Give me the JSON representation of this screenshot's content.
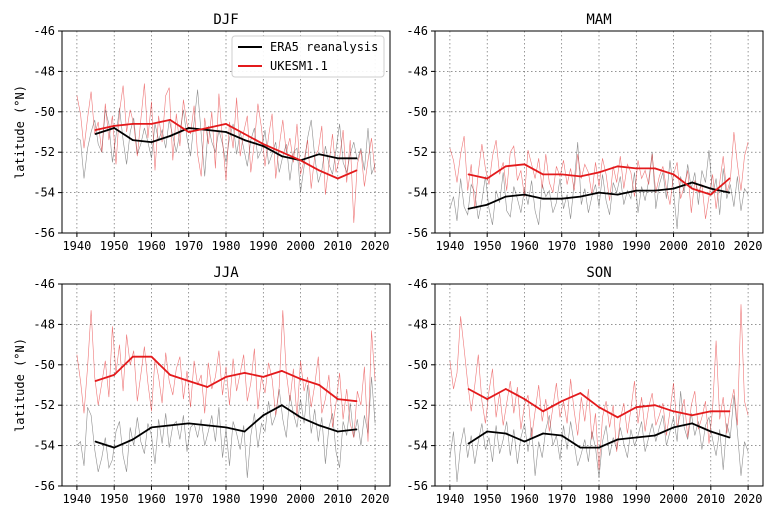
{
  "chart_data": [
    {
      "type": "line",
      "title": "DJF",
      "ylabel": "latitude (°N)",
      "xlim": [
        1936,
        2024
      ],
      "ylim": [
        -56,
        -46
      ],
      "xticks": [
        1940,
        1950,
        1960,
        1970,
        1980,
        1990,
        2000,
        2010,
        2020
      ],
      "yticks": [
        -56,
        -54,
        -52,
        -50,
        -48,
        -46
      ],
      "grid": true,
      "legend": "top-right",
      "series": [
        {
          "name": "ERA5 reanalysis",
          "color": "#000000",
          "x": [
            1945,
            1950,
            1955,
            1960,
            1965,
            1970,
            1975,
            1980,
            1985,
            1990,
            1995,
            2000,
            2005,
            2010,
            2015
          ],
          "values": [
            -51.1,
            -50.8,
            -51.4,
            -51.5,
            -51.2,
            -50.8,
            -50.9,
            -51.0,
            -51.4,
            -51.7,
            -52.2,
            -52.4,
            -52.1,
            -52.3,
            -52.3
          ]
        },
        {
          "name": "UKESM1.1",
          "color": "#e31a1c",
          "x": [
            1945,
            1950,
            1955,
            1960,
            1965,
            1970,
            1975,
            1980,
            1985,
            1990,
            1995,
            2000,
            2005,
            2010,
            2015
          ],
          "values": [
            -50.9,
            -50.7,
            -50.6,
            -50.6,
            -50.4,
            -51.0,
            -50.8,
            -50.6,
            -51.1,
            -51.6,
            -52.0,
            -52.4,
            -52.9,
            -53.3,
            -52.9
          ]
        }
      ]
    },
    {
      "type": "line",
      "title": "MAM",
      "xlim": [
        1936,
        2024
      ],
      "ylim": [
        -56,
        -46
      ],
      "xticks": [
        1940,
        1950,
        1960,
        1970,
        1980,
        1990,
        2000,
        2010,
        2020
      ],
      "yticks": [
        -56,
        -54,
        -52,
        -50,
        -48,
        -46
      ],
      "grid": true,
      "series": [
        {
          "name": "ERA5 reanalysis",
          "color": "#000000",
          "x": [
            1945,
            1950,
            1955,
            1960,
            1965,
            1970,
            1975,
            1980,
            1985,
            1990,
            1995,
            2000,
            2005,
            2010,
            2015
          ],
          "values": [
            -54.8,
            -54.6,
            -54.2,
            -54.1,
            -54.3,
            -54.3,
            -54.2,
            -54.0,
            -54.1,
            -53.9,
            -53.9,
            -53.8,
            -53.5,
            -53.8,
            -54.0
          ]
        },
        {
          "name": "UKESM1.1",
          "color": "#e31a1c",
          "x": [
            1945,
            1950,
            1955,
            1960,
            1965,
            1970,
            1975,
            1980,
            1985,
            1990,
            1995,
            2000,
            2005,
            2010,
            2015
          ],
          "values": [
            -53.1,
            -53.3,
            -52.7,
            -52.6,
            -53.1,
            -53.1,
            -53.2,
            -53.0,
            -52.7,
            -52.8,
            -52.8,
            -53.1,
            -53.8,
            -54.1,
            -53.3
          ]
        }
      ]
    },
    {
      "type": "line",
      "title": "JJA",
      "ylabel": "latitude (°N)",
      "xlim": [
        1936,
        2024
      ],
      "ylim": [
        -56,
        -46
      ],
      "xticks": [
        1940,
        1950,
        1960,
        1970,
        1980,
        1990,
        2000,
        2010,
        2020
      ],
      "yticks": [
        -56,
        -54,
        -52,
        -50,
        -48,
        -46
      ],
      "grid": true,
      "series": [
        {
          "name": "ERA5 reanalysis",
          "color": "#000000",
          "x": [
            1945,
            1950,
            1955,
            1960,
            1965,
            1970,
            1975,
            1980,
            1985,
            1990,
            1995,
            2000,
            2005,
            2010,
            2015
          ],
          "values": [
            -53.8,
            -54.1,
            -53.7,
            -53.1,
            -53.0,
            -52.9,
            -53.0,
            -53.1,
            -53.3,
            -52.5,
            -52.0,
            -52.6,
            -53.0,
            -53.3,
            -53.2
          ]
        },
        {
          "name": "UKESM1.1",
          "color": "#e31a1c",
          "x": [
            1945,
            1950,
            1955,
            1960,
            1965,
            1970,
            1975,
            1980,
            1985,
            1990,
            1995,
            2000,
            2005,
            2010,
            2015
          ],
          "values": [
            -50.8,
            -50.5,
            -49.6,
            -49.6,
            -50.5,
            -50.8,
            -51.1,
            -50.6,
            -50.4,
            -50.6,
            -50.3,
            -50.7,
            -51.0,
            -51.7,
            -51.8
          ]
        }
      ]
    },
    {
      "type": "line",
      "title": "SON",
      "xlim": [
        1936,
        2024
      ],
      "ylim": [
        -56,
        -46
      ],
      "xticks": [
        1940,
        1950,
        1960,
        1970,
        1980,
        1990,
        2000,
        2010,
        2020
      ],
      "yticks": [
        -56,
        -54,
        -52,
        -50,
        -48,
        -46
      ],
      "grid": true,
      "series": [
        {
          "name": "ERA5 reanalysis",
          "color": "#000000",
          "x": [
            1945,
            1950,
            1955,
            1960,
            1965,
            1970,
            1975,
            1980,
            1985,
            1990,
            1995,
            2000,
            2005,
            2010,
            2015
          ],
          "values": [
            -53.9,
            -53.3,
            -53.4,
            -53.8,
            -53.4,
            -53.5,
            -54.1,
            -54.1,
            -53.7,
            -53.6,
            -53.5,
            -53.1,
            -52.9,
            -53.3,
            -53.6
          ]
        },
        {
          "name": "UKESM1.1",
          "color": "#e31a1c",
          "x": [
            1945,
            1950,
            1955,
            1960,
            1965,
            1970,
            1975,
            1980,
            1985,
            1990,
            1995,
            2000,
            2005,
            2010,
            2015
          ],
          "values": [
            -51.2,
            -51.7,
            -51.2,
            -51.7,
            -52.3,
            -51.8,
            -51.4,
            -52.1,
            -52.6,
            -52.1,
            -52.0,
            -52.3,
            -52.5,
            -52.3,
            -52.3
          ]
        }
      ]
    }
  ]
}
